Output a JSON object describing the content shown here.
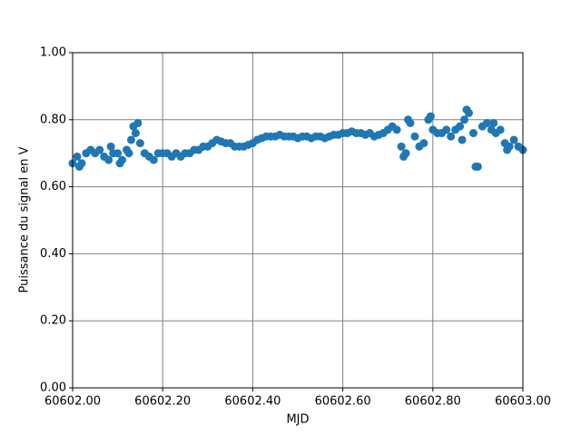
{
  "chart_data": {
    "type": "scatter",
    "xlabel": "MJD",
    "ylabel": "Puissance du signal en V",
    "color": "#1f77b4",
    "grid": true,
    "xlim": [
      60602.0,
      60603.0
    ],
    "xticks": [
      {
        "value": 60602.0,
        "label": "60602.00"
      },
      {
        "value": 60602.2,
        "label": "60602.20"
      },
      {
        "value": 60602.4,
        "label": "60602.40"
      },
      {
        "value": 60602.6,
        "label": "60602.60"
      },
      {
        "value": 60602.8,
        "label": "60602.80"
      },
      {
        "value": 60603.0,
        "label": "60603.00"
      }
    ],
    "ylim": [
      0,
      1
    ],
    "yticks": [
      {
        "value": 0,
        "label": "0.00"
      },
      {
        "value": 0.2,
        "label": "0.20"
      },
      {
        "value": 0.4,
        "label": "0.40"
      },
      {
        "value": 0.6,
        "label": "0.60"
      },
      {
        "value": 0.8,
        "label": "0.80"
      },
      {
        "value": 1,
        "label": "1.00"
      }
    ],
    "x": [
      60602.0,
      60602.01,
      60602.02,
      60602.03,
      60602.04,
      60602.05,
      60602.06,
      60602.07,
      60602.08,
      60602.09,
      60602.1,
      60602.11,
      60602.12,
      60602.13,
      60602.14,
      60602.15,
      60602.16,
      60602.17,
      60602.18,
      60602.19,
      60602.2,
      60602.21,
      60602.22,
      60602.23,
      60602.24,
      60602.25,
      60602.26,
      60602.27,
      60602.28,
      60602.29,
      60602.3,
      60602.31,
      60602.32,
      60602.33,
      60602.34,
      60602.35,
      60602.36,
      60602.37,
      60602.38,
      60602.39,
      60602.4,
      60602.41,
      60602.42,
      60602.43,
      60602.44,
      60602.45,
      60602.46,
      60602.47,
      60602.48,
      60602.49,
      60602.5,
      60602.51,
      60602.52,
      60602.53,
      60602.54,
      60602.55,
      60602.56,
      60602.57,
      60602.58,
      60602.59,
      60602.6,
      60602.61,
      60602.62,
      60602.63,
      60602.64,
      60602.65,
      60602.66,
      60602.67,
      60602.68,
      60602.69,
      60602.7,
      60602.71,
      60602.72,
      60602.73,
      60602.74,
      60602.75,
      60602.76,
      60602.77,
      60602.78,
      60602.79,
      60602.8,
      60602.81,
      60602.82,
      60602.83,
      60602.84,
      60602.85,
      60602.86,
      60602.87,
      60602.88,
      60602.89,
      60602.9,
      60602.91,
      60602.92,
      60602.93,
      60602.94,
      60602.95,
      60602.96,
      60602.97,
      60602.98,
      60602.99,
      60603.0,
      60602.015,
      60602.085,
      60602.135,
      60602.145,
      60602.125,
      60602.105,
      60602.735,
      60602.745,
      60602.795,
      60602.875,
      60602.895,
      60602.865,
      60602.935,
      60602.965
    ],
    "values": [
      0.67,
      0.69,
      0.67,
      0.7,
      0.71,
      0.7,
      0.71,
      0.69,
      0.68,
      0.7,
      0.7,
      0.68,
      0.71,
      0.74,
      0.76,
      0.73,
      0.7,
      0.69,
      0.68,
      0.7,
      0.7,
      0.7,
      0.69,
      0.7,
      0.69,
      0.7,
      0.7,
      0.71,
      0.71,
      0.72,
      0.72,
      0.73,
      0.74,
      0.735,
      0.73,
      0.73,
      0.72,
      0.72,
      0.72,
      0.725,
      0.73,
      0.74,
      0.745,
      0.75,
      0.75,
      0.75,
      0.755,
      0.75,
      0.75,
      0.75,
      0.745,
      0.75,
      0.75,
      0.745,
      0.75,
      0.75,
      0.745,
      0.75,
      0.755,
      0.755,
      0.76,
      0.76,
      0.765,
      0.76,
      0.76,
      0.755,
      0.76,
      0.75,
      0.755,
      0.76,
      0.77,
      0.78,
      0.77,
      0.72,
      0.7,
      0.79,
      0.75,
      0.72,
      0.73,
      0.8,
      0.77,
      0.76,
      0.76,
      0.77,
      0.75,
      0.77,
      0.78,
      0.8,
      0.82,
      0.76,
      0.66,
      0.78,
      0.79,
      0.77,
      0.76,
      0.77,
      0.73,
      0.72,
      0.74,
      0.72,
      0.71,
      0.66,
      0.72,
      0.78,
      0.79,
      0.7,
      0.67,
      0.69,
      0.8,
      0.81,
      0.83,
      0.66,
      0.74,
      0.79,
      0.71
    ]
  }
}
